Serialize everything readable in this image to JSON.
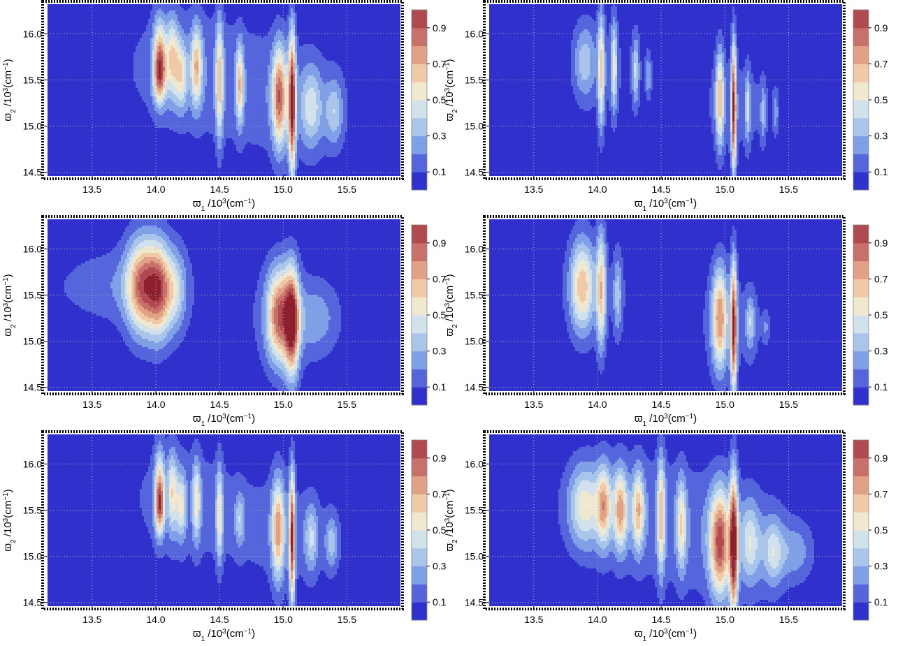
{
  "chart_data": {
    "type": "contour",
    "layout": "3 rows x 2 columns",
    "colorbar": {
      "levels": [
        0,
        0.1,
        0.2,
        0.3,
        0.4,
        0.5,
        0.6,
        0.7,
        0.8,
        0.9,
        1.0
      ],
      "tick_labels": [
        "0.1",
        "0.3",
        "0.5",
        "0.7",
        "0.9"
      ],
      "tick_values": [
        0.1,
        0.3,
        0.5,
        0.7,
        0.9
      ],
      "colors": [
        "#3030cc",
        "#5566dd",
        "#7fa0e6",
        "#a9c6ea",
        "#d2e2ec",
        "#f0e9cf",
        "#f0c9a6",
        "#e0a185",
        "#c8706a",
        "#b04a50",
        "#8e1f2c"
      ]
    },
    "x_axis": {
      "label_base": "ϖ",
      "label_sub": "1",
      "label_mid": " /10",
      "label_sup": "3",
      "label_tail": "(cm",
      "label_sup2": "−1",
      "label_close": ")",
      "range": [
        13.15,
        15.92
      ],
      "ticks": [
        13.5,
        14.0,
        14.5,
        15.0,
        15.5
      ],
      "tick_labels": [
        "13.5",
        "14.0",
        "14.5",
        "15.0",
        "15.5"
      ]
    },
    "y_axis": {
      "label_base": "ϖ",
      "label_sub": "2",
      "label_mid": " /10",
      "label_sup": "3",
      "label_tail": "(cm",
      "label_sup2": "−1",
      "label_close": ")",
      "range": [
        14.46,
        16.32
      ],
      "ticks": [
        14.5,
        15.0,
        15.5,
        16.0
      ],
      "tick_labels": [
        "14.5",
        "15.0",
        "15.5",
        "16.0"
      ]
    },
    "panels": [
      {
        "id": "top-left",
        "spread": 1.0,
        "peaks": [
          {
            "x": 14.03,
            "y": 15.78,
            "amp": 0.55,
            "sx": 0.035,
            "sy": 0.28
          },
          {
            "x": 14.03,
            "y": 15.52,
            "amp": 0.5,
            "sx": 0.035,
            "sy": 0.2
          },
          {
            "x": 14.13,
            "y": 15.75,
            "amp": 0.45,
            "sx": 0.035,
            "sy": 0.3
          },
          {
            "x": 14.2,
            "y": 15.55,
            "amp": 0.4,
            "sx": 0.035,
            "sy": 0.25
          },
          {
            "x": 14.32,
            "y": 15.65,
            "amp": 0.55,
            "sx": 0.03,
            "sy": 0.3
          },
          {
            "x": 14.5,
            "y": 15.5,
            "amp": 0.55,
            "sx": 0.02,
            "sy": 0.45
          },
          {
            "x": 14.66,
            "y": 15.45,
            "amp": 0.55,
            "sx": 0.02,
            "sy": 0.3
          },
          {
            "x": 14.97,
            "y": 15.32,
            "amp": 0.75,
            "sx": 0.04,
            "sy": 0.38
          },
          {
            "x": 15.07,
            "y": 15.25,
            "amp": 0.95,
            "sx": 0.02,
            "sy": 0.55
          },
          {
            "x": 15.22,
            "y": 15.2,
            "amp": 0.35,
            "sx": 0.06,
            "sy": 0.3
          },
          {
            "x": 15.4,
            "y": 15.15,
            "amp": 0.3,
            "sx": 0.05,
            "sy": 0.25
          }
        ]
      },
      {
        "id": "top-right",
        "spread": 0.75,
        "peaks": [
          {
            "x": 13.9,
            "y": 15.7,
            "amp": 0.3,
            "sx": 0.08,
            "sy": 0.28
          },
          {
            "x": 14.03,
            "y": 15.6,
            "amp": 0.55,
            "sx": 0.025,
            "sy": 0.45
          },
          {
            "x": 14.13,
            "y": 15.65,
            "amp": 0.45,
            "sx": 0.025,
            "sy": 0.35
          },
          {
            "x": 14.3,
            "y": 15.6,
            "amp": 0.35,
            "sx": 0.025,
            "sy": 0.25
          },
          {
            "x": 14.4,
            "y": 15.55,
            "amp": 0.25,
            "sx": 0.02,
            "sy": 0.15
          },
          {
            "x": 14.96,
            "y": 15.3,
            "amp": 0.62,
            "sx": 0.03,
            "sy": 0.35
          },
          {
            "x": 15.07,
            "y": 15.2,
            "amp": 0.95,
            "sx": 0.018,
            "sy": 0.5
          },
          {
            "x": 15.18,
            "y": 15.2,
            "amp": 0.35,
            "sx": 0.02,
            "sy": 0.25
          },
          {
            "x": 15.3,
            "y": 15.15,
            "amp": 0.25,
            "sx": 0.02,
            "sy": 0.2
          },
          {
            "x": 15.4,
            "y": 15.15,
            "amp": 0.2,
            "sx": 0.02,
            "sy": 0.15
          }
        ]
      },
      {
        "id": "middle-left",
        "spread": 1.0,
        "peaks": [
          {
            "x": 13.9,
            "y": 15.6,
            "amp": 0.78,
            "sx": 0.09,
            "sy": 0.35
          },
          {
            "x": 14.03,
            "y": 15.55,
            "amp": 0.58,
            "sx": 0.06,
            "sy": 0.35
          },
          {
            "x": 14.15,
            "y": 15.55,
            "amp": 0.35,
            "sx": 0.06,
            "sy": 0.3
          },
          {
            "x": 13.55,
            "y": 15.6,
            "amp": 0.12,
            "sx": 0.3,
            "sy": 0.25
          },
          {
            "x": 14.97,
            "y": 15.28,
            "amp": 0.8,
            "sx": 0.07,
            "sy": 0.35
          },
          {
            "x": 15.07,
            "y": 15.2,
            "amp": 0.85,
            "sx": 0.04,
            "sy": 0.4
          },
          {
            "x": 15.25,
            "y": 15.25,
            "amp": 0.2,
            "sx": 0.12,
            "sy": 0.25
          }
        ]
      },
      {
        "id": "middle-right",
        "spread": 0.85,
        "peaks": [
          {
            "x": 13.88,
            "y": 15.6,
            "amp": 0.6,
            "sx": 0.08,
            "sy": 0.35
          },
          {
            "x": 14.03,
            "y": 15.55,
            "amp": 0.58,
            "sx": 0.03,
            "sy": 0.45
          },
          {
            "x": 14.16,
            "y": 15.5,
            "amp": 0.3,
            "sx": 0.03,
            "sy": 0.3
          },
          {
            "x": 14.96,
            "y": 15.25,
            "amp": 0.7,
            "sx": 0.05,
            "sy": 0.38
          },
          {
            "x": 15.07,
            "y": 15.15,
            "amp": 0.95,
            "sx": 0.02,
            "sy": 0.5
          },
          {
            "x": 15.2,
            "y": 15.2,
            "amp": 0.3,
            "sx": 0.03,
            "sy": 0.2
          },
          {
            "x": 15.32,
            "y": 15.15,
            "amp": 0.15,
            "sx": 0.02,
            "sy": 0.1
          }
        ]
      },
      {
        "id": "bottom-left",
        "spread": 0.9,
        "peaks": [
          {
            "x": 14.03,
            "y": 15.75,
            "amp": 0.5,
            "sx": 0.03,
            "sy": 0.3
          },
          {
            "x": 14.03,
            "y": 15.52,
            "amp": 0.5,
            "sx": 0.03,
            "sy": 0.2
          },
          {
            "x": 14.13,
            "y": 15.7,
            "amp": 0.45,
            "sx": 0.03,
            "sy": 0.3
          },
          {
            "x": 14.2,
            "y": 15.55,
            "amp": 0.4,
            "sx": 0.03,
            "sy": 0.25
          },
          {
            "x": 14.32,
            "y": 15.6,
            "amp": 0.45,
            "sx": 0.025,
            "sy": 0.3
          },
          {
            "x": 14.5,
            "y": 15.45,
            "amp": 0.5,
            "sx": 0.02,
            "sy": 0.35
          },
          {
            "x": 14.66,
            "y": 15.4,
            "amp": 0.28,
            "sx": 0.03,
            "sy": 0.2
          },
          {
            "x": 14.96,
            "y": 15.3,
            "amp": 0.65,
            "sx": 0.04,
            "sy": 0.38
          },
          {
            "x": 15.07,
            "y": 15.2,
            "amp": 0.92,
            "sx": 0.018,
            "sy": 0.5
          },
          {
            "x": 15.22,
            "y": 15.2,
            "amp": 0.32,
            "sx": 0.04,
            "sy": 0.25
          },
          {
            "x": 15.38,
            "y": 15.15,
            "amp": 0.28,
            "sx": 0.04,
            "sy": 0.2
          }
        ]
      },
      {
        "id": "bottom-right",
        "spread": 1.1,
        "peaks": [
          {
            "x": 13.9,
            "y": 15.55,
            "amp": 0.45,
            "sx": 0.08,
            "sy": 0.3
          },
          {
            "x": 14.05,
            "y": 15.55,
            "amp": 0.55,
            "sx": 0.035,
            "sy": 0.3
          },
          {
            "x": 14.18,
            "y": 15.5,
            "amp": 0.62,
            "sx": 0.035,
            "sy": 0.3
          },
          {
            "x": 14.32,
            "y": 15.5,
            "amp": 0.55,
            "sx": 0.03,
            "sy": 0.3
          },
          {
            "x": 14.5,
            "y": 15.45,
            "amp": 0.55,
            "sx": 0.02,
            "sy": 0.45
          },
          {
            "x": 14.66,
            "y": 15.35,
            "amp": 0.45,
            "sx": 0.025,
            "sy": 0.35
          },
          {
            "x": 14.96,
            "y": 15.15,
            "amp": 0.8,
            "sx": 0.05,
            "sy": 0.4
          },
          {
            "x": 15.07,
            "y": 15.12,
            "amp": 0.95,
            "sx": 0.02,
            "sy": 0.55
          },
          {
            "x": 15.2,
            "y": 15.15,
            "amp": 0.35,
            "sx": 0.05,
            "sy": 0.3
          },
          {
            "x": 15.38,
            "y": 15.05,
            "amp": 0.35,
            "sx": 0.05,
            "sy": 0.25
          },
          {
            "x": 15.55,
            "y": 15.05,
            "amp": 0.2,
            "sx": 0.08,
            "sy": 0.2
          }
        ]
      }
    ]
  }
}
